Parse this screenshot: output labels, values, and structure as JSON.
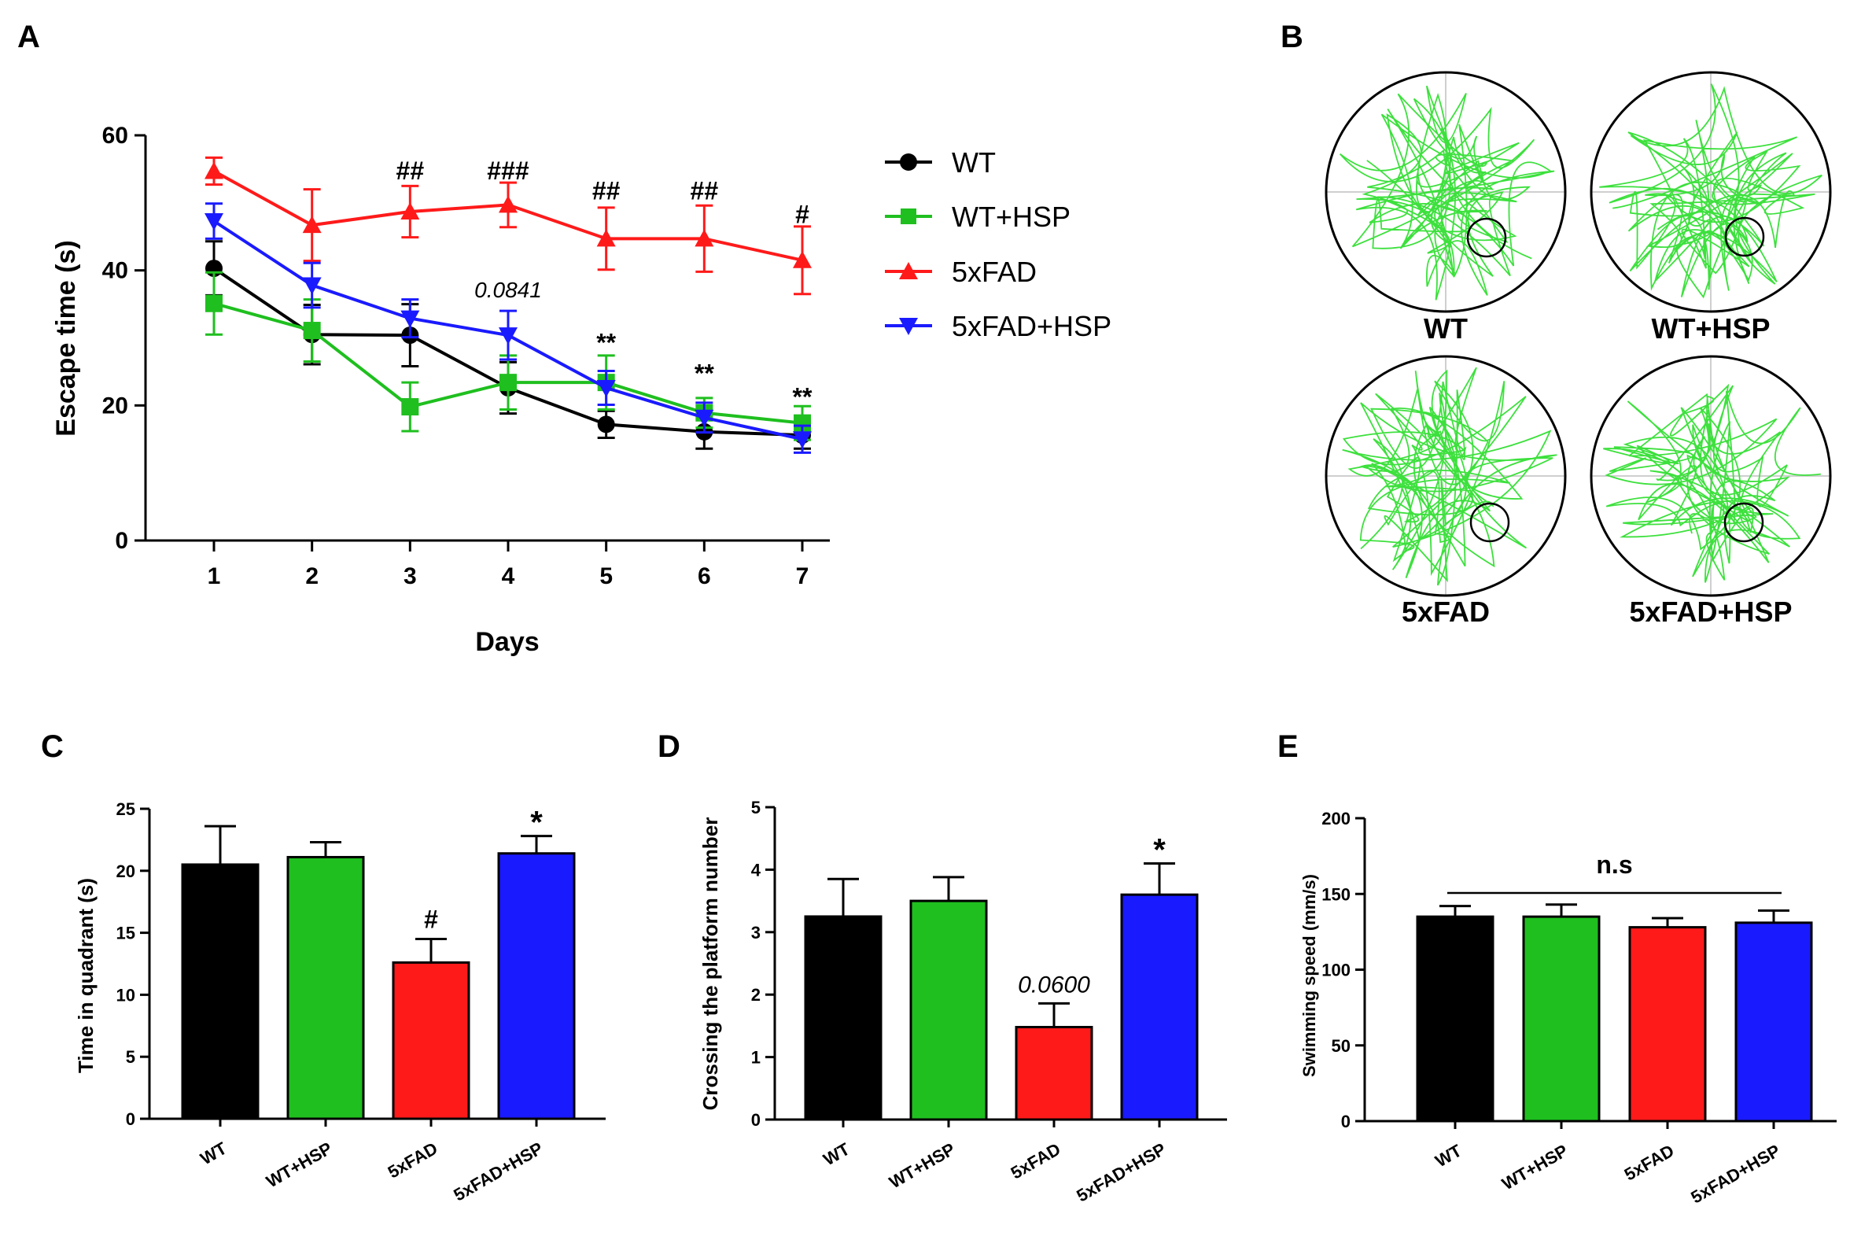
{
  "panels": {
    "A": "A",
    "B": "B",
    "C": "C",
    "D": "D",
    "E": "E"
  },
  "colors": {
    "WT": "#000000",
    "WT+HSP": "#1fbf1f",
    "5xFAD": "#ff1a1a",
    "5xFAD+HSP": "#1a1aff"
  },
  "chart_data": [
    {
      "id": "A",
      "type": "line",
      "title": "",
      "xlabel": "Days",
      "ylabel": "Escape time (s)",
      "x": [
        1,
        2,
        3,
        4,
        5,
        6,
        7
      ],
      "x_ticks": [
        "1",
        "2",
        "3",
        "4",
        "5",
        "6",
        "7"
      ],
      "ylim": [
        0,
        60
      ],
      "y_ticks": [
        "0",
        "20",
        "40",
        "60"
      ],
      "y_tick_values": [
        0,
        20,
        40,
        60
      ],
      "legend_position": "right",
      "series": [
        {
          "name": "WT",
          "marker": "circle",
          "values": [
            40.3,
            30.5,
            30.4,
            22.6,
            17.2,
            16.1,
            15.6
          ],
          "err": [
            4.0,
            4.4,
            4.6,
            3.8,
            2.0,
            2.5,
            2.0
          ]
        },
        {
          "name": "WT+HSP",
          "marker": "square",
          "values": [
            35.1,
            31.1,
            19.8,
            23.4,
            23.4,
            18.9,
            17.4
          ],
          "err": [
            4.6,
            4.6,
            3.6,
            4.0,
            4.0,
            2.2,
            2.5
          ]
        },
        {
          "name": "5xFAD",
          "marker": "triangle-up",
          "values": [
            54.7,
            46.7,
            48.7,
            49.7,
            44.7,
            44.7,
            41.5
          ],
          "err": [
            2.0,
            5.3,
            3.8,
            3.3,
            4.6,
            4.9,
            5.0
          ]
        },
        {
          "name": "5xFAD+HSP",
          "marker": "triangle-down",
          "values": [
            47.3,
            37.8,
            32.9,
            30.4,
            22.6,
            18.2,
            15.0
          ],
          "err": [
            2.6,
            3.3,
            2.8,
            3.6,
            2.5,
            2.2,
            2.0
          ]
        }
      ],
      "annotations": [
        {
          "x": 3,
          "text": "##",
          "y": 53.5
        },
        {
          "x": 4,
          "text": "###",
          "y": 53.5
        },
        {
          "x": 5,
          "text": "##",
          "y": 50.5
        },
        {
          "x": 6,
          "text": "##",
          "y": 50.5
        },
        {
          "x": 7,
          "text": "#",
          "y": 47.0
        },
        {
          "x": 4,
          "text": "0.0841",
          "y": 36.0,
          "italic": true
        },
        {
          "x": 5,
          "text": "**",
          "y": 28.0
        },
        {
          "x": 6,
          "text": "**",
          "y": 23.5
        },
        {
          "x": 7,
          "text": "**",
          "y": 20.0
        }
      ]
    },
    {
      "id": "C",
      "type": "bar",
      "title": "",
      "xlabel": "",
      "ylabel": "Time in quadrant (s)",
      "categories": [
        "WT",
        "WT+HSP",
        "5xFAD",
        "5xFAD+HSP"
      ],
      "values": [
        20.5,
        21.1,
        12.6,
        21.4
      ],
      "err": [
        3.1,
        1.2,
        1.9,
        1.4
      ],
      "ylim": [
        0,
        25
      ],
      "y_ticks": [
        "0",
        "5",
        "10",
        "15",
        "20",
        "25"
      ],
      "y_tick_values": [
        0,
        5,
        10,
        15,
        20,
        25
      ],
      "annotations": [
        {
          "index": 2,
          "text": "#"
        },
        {
          "index": 3,
          "text": "*"
        }
      ]
    },
    {
      "id": "D",
      "type": "bar",
      "title": "",
      "xlabel": "",
      "ylabel": "Crossing the platform number",
      "categories": [
        "WT",
        "WT+HSP",
        "5xFAD",
        "5xFAD+HSP"
      ],
      "values": [
        3.25,
        3.5,
        1.48,
        3.6
      ],
      "err": [
        0.6,
        0.38,
        0.38,
        0.5
      ],
      "ylim": [
        0,
        5
      ],
      "y_ticks": [
        "0",
        "1",
        "2",
        "3",
        "4",
        "5"
      ],
      "y_tick_values": [
        0,
        1,
        2,
        3,
        4,
        5
      ],
      "annotations": [
        {
          "index": 2,
          "text": "0.0600",
          "italic": true
        },
        {
          "index": 3,
          "text": "*"
        }
      ]
    },
    {
      "id": "E",
      "type": "bar",
      "title": "",
      "xlabel": "",
      "ylabel": "Swimming speed (mm/s)",
      "categories": [
        "WT",
        "WT+HSP",
        "5xFAD",
        "5xFAD+HSP"
      ],
      "values": [
        135,
        135,
        128,
        131
      ],
      "err": [
        7,
        8,
        6,
        8
      ],
      "ylim": [
        0,
        200
      ],
      "y_ticks": [
        "0",
        "50",
        "100",
        "150",
        "200"
      ],
      "y_tick_values": [
        0,
        50,
        100,
        150,
        200
      ],
      "annotations": [
        {
          "text": "n.s",
          "span": [
            0,
            3
          ]
        }
      ]
    }
  ],
  "maze_panel": {
    "labels": [
      "WT",
      "WT+HSP",
      "5xFAD",
      "5xFAD+HSP"
    ]
  }
}
